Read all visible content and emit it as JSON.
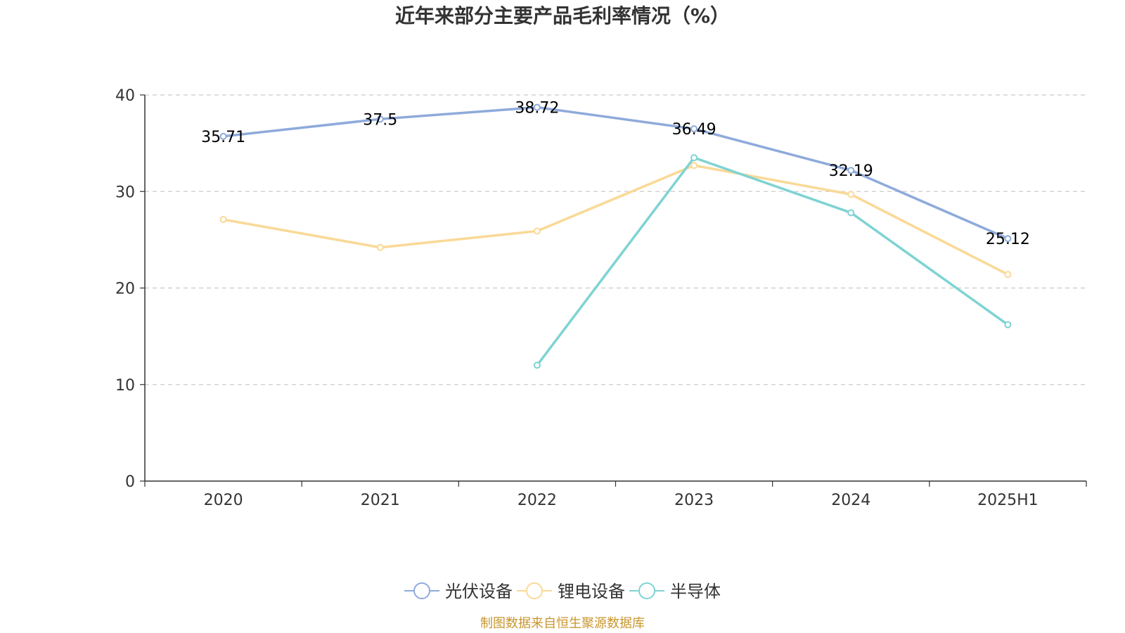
{
  "chart_data": {
    "type": "line",
    "title": "近年来部分主要产品毛利率情况（%）",
    "categories": [
      "2020",
      "2021",
      "2022",
      "2023",
      "2024",
      "2025H1"
    ],
    "ylim": [
      0,
      40
    ],
    "yticks": [
      "0",
      "10",
      "20",
      "30",
      "40"
    ],
    "grid": true,
    "legend_position": "bottom",
    "series": [
      {
        "name": "光伏设备",
        "color": "#8eaadb",
        "values": [
          35.71,
          37.5,
          38.72,
          36.49,
          32.19,
          25.12
        ],
        "labels": [
          "35.71",
          "37.5",
          "38.72",
          "36.49",
          "32.19",
          "25.12"
        ]
      },
      {
        "name": "锂电设备",
        "color": "#fad996",
        "values": [
          27.1,
          24.2,
          25.9,
          32.7,
          29.7,
          21.4
        ],
        "labels": []
      },
      {
        "name": "半导体",
        "color": "#7fd3d3",
        "values": [
          null,
          null,
          12.0,
          33.5,
          27.8,
          16.2
        ],
        "labels": []
      }
    ],
    "source": "制图数据来自恒生聚源数据库"
  }
}
